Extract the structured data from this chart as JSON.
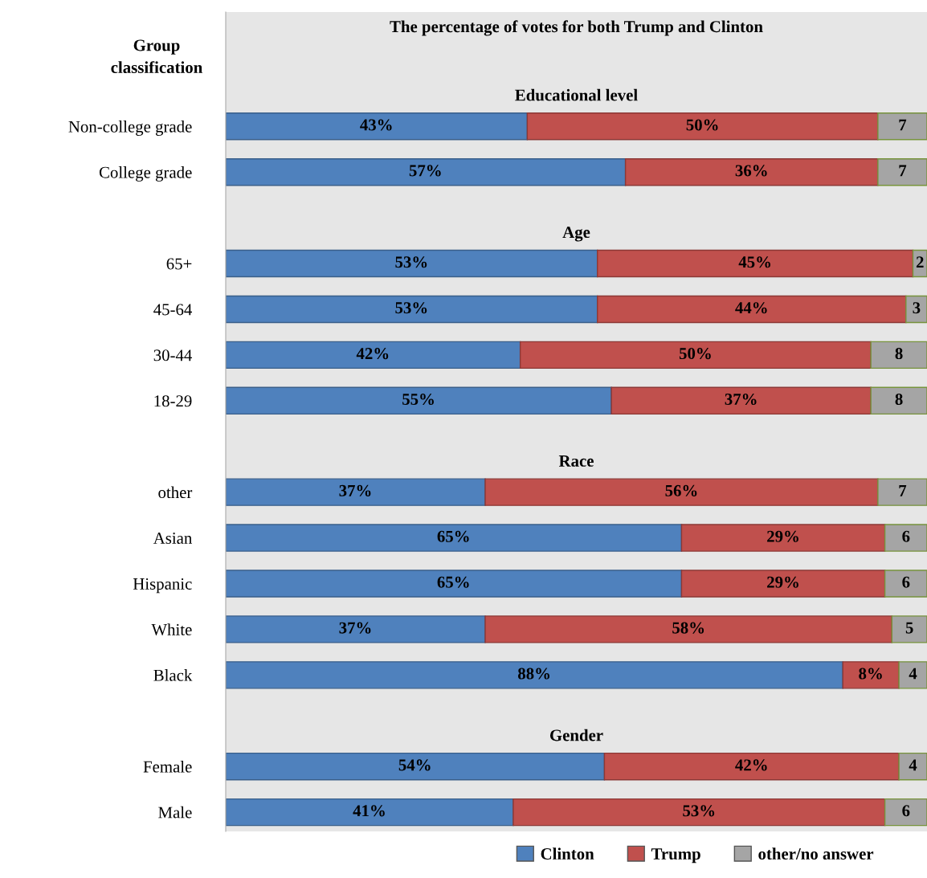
{
  "chart_data": {
    "type": "bar",
    "orientation": "horizontal",
    "stacked": true,
    "title": "The percentage of votes for both Trump and Clinton",
    "ylabel": "Group\nclassification",
    "categories": [
      "Educational level",
      "Non-college grade",
      "College grade",
      "Age",
      "65+",
      "45-64",
      "30-44",
      "18-29",
      "Race",
      "other",
      "Asian",
      "Hispanic",
      "White",
      "Black",
      "Gender",
      "Female",
      "Male"
    ],
    "series": [
      {
        "name": "Clinton",
        "color": "#4f81bd",
        "values": [
          null,
          43,
          57,
          null,
          53,
          53,
          42,
          55,
          null,
          37,
          65,
          65,
          37,
          88,
          null,
          54,
          41
        ],
        "value_labels": [
          null,
          "43%",
          "57%",
          null,
          "53%",
          "53%",
          "42%",
          "55%",
          null,
          "37%",
          "65%",
          "65%",
          "37%",
          "88%",
          null,
          "54%",
          "41%"
        ]
      },
      {
        "name": "Trump",
        "color": "#c0504d",
        "values": [
          null,
          50,
          36,
          null,
          45,
          44,
          50,
          37,
          null,
          56,
          29,
          29,
          58,
          8,
          null,
          42,
          53
        ],
        "value_labels": [
          null,
          "50%",
          "36%",
          null,
          "45%",
          "44%",
          "50%",
          "37%",
          null,
          "56%",
          "29%",
          "29%",
          "58%",
          "8%",
          null,
          "42%",
          "53%"
        ]
      },
      {
        "name": "other/no answer",
        "color": "#a5a5a5",
        "values": [
          null,
          7,
          7,
          null,
          2,
          3,
          8,
          8,
          null,
          7,
          6,
          6,
          5,
          4,
          null,
          4,
          6
        ],
        "value_labels": [
          null,
          "7",
          "7",
          null,
          "2",
          "3",
          "8",
          "8",
          null,
          "7",
          "6",
          "6",
          "5",
          "4",
          null,
          "4",
          "6"
        ]
      }
    ],
    "xlim": [
      0,
      100
    ],
    "tick_labels": "y",
    "grid": false,
    "legend": "bottom"
  }
}
